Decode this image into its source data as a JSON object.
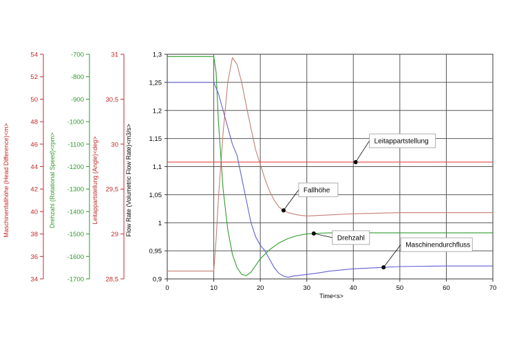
{
  "chart_data": {
    "type": "line",
    "grid": true,
    "x_axis": {
      "label": "Time<s>",
      "range": [
        0,
        70
      ],
      "ticks": [
        "0",
        "10",
        "20",
        "30",
        "40",
        "50",
        "60",
        "70"
      ]
    },
    "y_axes": [
      {
        "id": "head",
        "label": "Maschinenfallhöhe (Head Difference)<m>",
        "color": "#c0292b",
        "range": [
          34,
          54
        ],
        "ticks": [
          "54",
          "52",
          "50",
          "48",
          "46",
          "44",
          "42",
          "40",
          "38",
          "36",
          "34"
        ]
      },
      {
        "id": "speed",
        "label": "Drehzahl (Rotational Speed)<rpm>",
        "color": "#2e9a2e",
        "range": [
          -1700,
          -700
        ],
        "ticks": [
          "-700",
          "-800",
          "-900",
          "-1000",
          "-1100",
          "-1200",
          "-1300",
          "-1400",
          "-1500",
          "-1600",
          "-1700"
        ]
      },
      {
        "id": "angle",
        "label": "Leitappartstellung (Angle)<deg>",
        "color": "#c0292b",
        "range": [
          28.5,
          31
        ],
        "ticks": [
          "31",
          "30,5",
          "30",
          "29,5",
          "29",
          "28,5"
        ]
      },
      {
        "id": "flow",
        "label": "Flow Rate (Volumetric Flow Rate)<m3/s>",
        "color": "#000000",
        "range": [
          0.9,
          1.3
        ],
        "ticks": [
          "1,3",
          "1,25",
          "1,2",
          "1,15",
          "1,1",
          "1,05",
          "1",
          "0,95",
          "0,9"
        ]
      }
    ],
    "series": [
      {
        "name": "Leitappartstellung",
        "axis": "angle",
        "color": "#e84646",
        "x": [
          0,
          70
        ],
        "y": [
          29.8,
          29.8
        ]
      },
      {
        "name": "Fallhöhe",
        "axis": "head",
        "color": "#c47d72",
        "x": [
          0,
          10,
          10.5,
          11,
          12,
          13,
          14,
          15,
          16,
          17,
          18,
          19,
          20,
          21,
          22,
          23,
          24,
          25,
          26,
          28,
          30,
          35,
          40,
          50,
          60,
          70
        ],
        "y": [
          34.7,
          34.7,
          37.5,
          41.2,
          47.0,
          51.5,
          53.7,
          53.1,
          51.5,
          49.4,
          47.4,
          45.5,
          44.2,
          42.9,
          41.8,
          41.0,
          40.4,
          40.1,
          39.9,
          39.7,
          39.6,
          39.7,
          39.8,
          39.9,
          39.9,
          39.9
        ]
      },
      {
        "name": "Drehzahl",
        "axis": "speed",
        "color": "#2e9a2e",
        "x": [
          0,
          10,
          10.5,
          11,
          12,
          13,
          14,
          15,
          16,
          17,
          18,
          19,
          20,
          22,
          24,
          26,
          28,
          30,
          32,
          35,
          40,
          50,
          70
        ],
        "y": [
          -710,
          -710,
          -780,
          -1000,
          -1300,
          -1480,
          -1590,
          -1650,
          -1680,
          -1685,
          -1670,
          -1640,
          -1610,
          -1570,
          -1540,
          -1520,
          -1507,
          -1500,
          -1497,
          -1495,
          -1495,
          -1495,
          -1495
        ]
      },
      {
        "name": "Maschinendurchfluss",
        "axis": "flow",
        "color": "#5f5fd4",
        "x": [
          0,
          10,
          11,
          12,
          13,
          14,
          15,
          16,
          17,
          18,
          19,
          20,
          21,
          22,
          23,
          24,
          25,
          26,
          27,
          28,
          30,
          32,
          35,
          40,
          45,
          50,
          60,
          70
        ],
        "y": [
          1.25,
          1.25,
          1.23,
          1.2,
          1.17,
          1.14,
          1.12,
          1.08,
          1.04,
          1.0,
          0.975,
          0.96,
          0.95,
          0.935,
          0.92,
          0.91,
          0.905,
          0.903,
          0.905,
          0.906,
          0.908,
          0.91,
          0.914,
          0.918,
          0.92,
          0.922,
          0.923,
          0.923
        ]
      }
    ],
    "annotations": [
      {
        "text": "Leitappartstellung",
        "series": "Leitappartstellung",
        "point_x": 40.5
      },
      {
        "text": "Fallhöhe",
        "series": "Fallhöhe",
        "point_x": 25
      },
      {
        "text": "Drehzahl",
        "series": "Drehzahl",
        "point_x": 31.5
      },
      {
        "text": "Maschinendurchfluss",
        "series": "Maschinendurchfluss",
        "point_x": 46.5
      }
    ]
  }
}
